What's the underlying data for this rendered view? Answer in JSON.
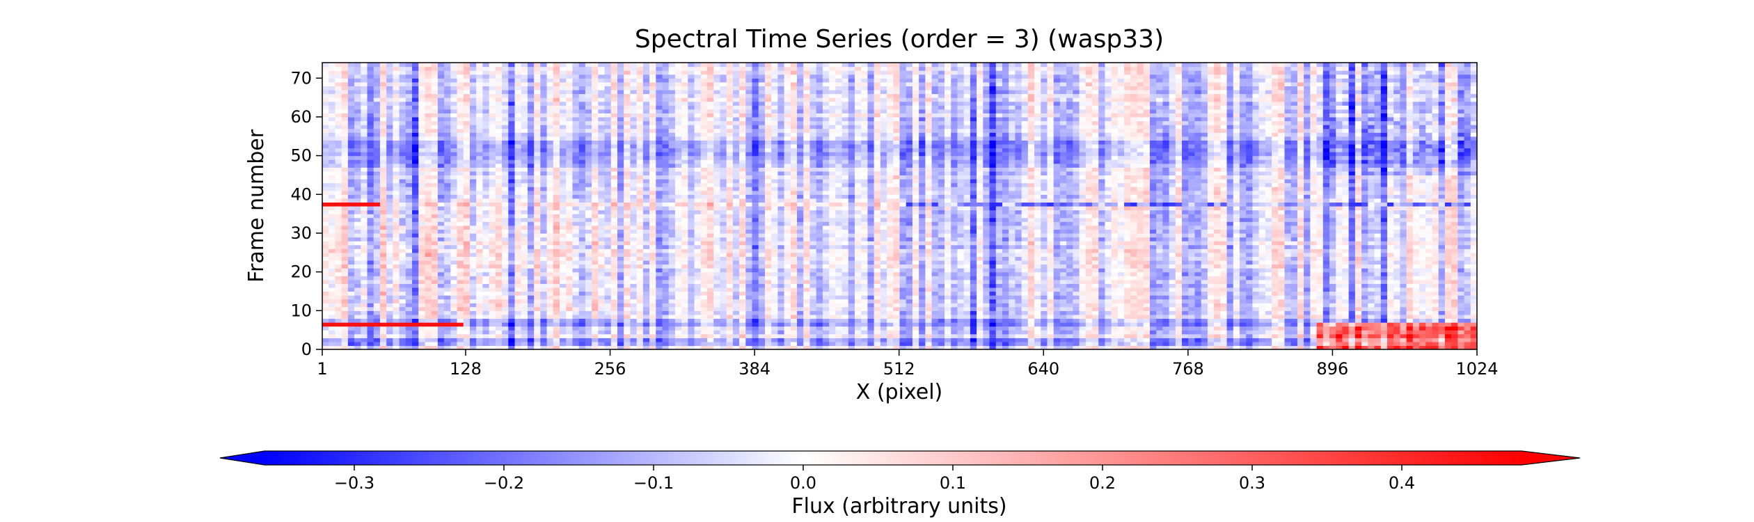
{
  "chart_data": {
    "type": "heatmap",
    "title": "Spectral Time Series (order = 3) (wasp33)",
    "xlabel": "X (pixel)",
    "ylabel": "Frame number",
    "xlim": [
      1,
      1024
    ],
    "ylim": [
      0,
      74
    ],
    "x_ticks": [
      1,
      128,
      256,
      384,
      512,
      640,
      768,
      896,
      1024
    ],
    "x_tick_labels": [
      "1",
      "128",
      "256",
      "384",
      "512",
      "640",
      "768",
      "896",
      "1024"
    ],
    "y_ticks": [
      0,
      10,
      20,
      30,
      40,
      50,
      60,
      70
    ],
    "y_tick_labels": [
      "0",
      "10",
      "20",
      "30",
      "40",
      "50",
      "60",
      "70"
    ],
    "grid": false,
    "colormap": "bwr",
    "colorbar": {
      "label": "Flux (arbitrary units)",
      "orientation": "horizontal",
      "placement": "bottom",
      "extend": "both",
      "range": [
        -0.36,
        0.48
      ],
      "ticks": [
        -0.3,
        -0.2,
        -0.1,
        0.0,
        0.1,
        0.2,
        0.3,
        0.4
      ],
      "tick_labels": [
        "−0.3",
        "−0.2",
        "−0.1",
        "0.0",
        "0.1",
        "0.2",
        "0.3",
        "0.4"
      ],
      "color_low": "#0000ff",
      "color_mid": "#ffffff",
      "color_high": "#ff0000"
    }
  }
}
